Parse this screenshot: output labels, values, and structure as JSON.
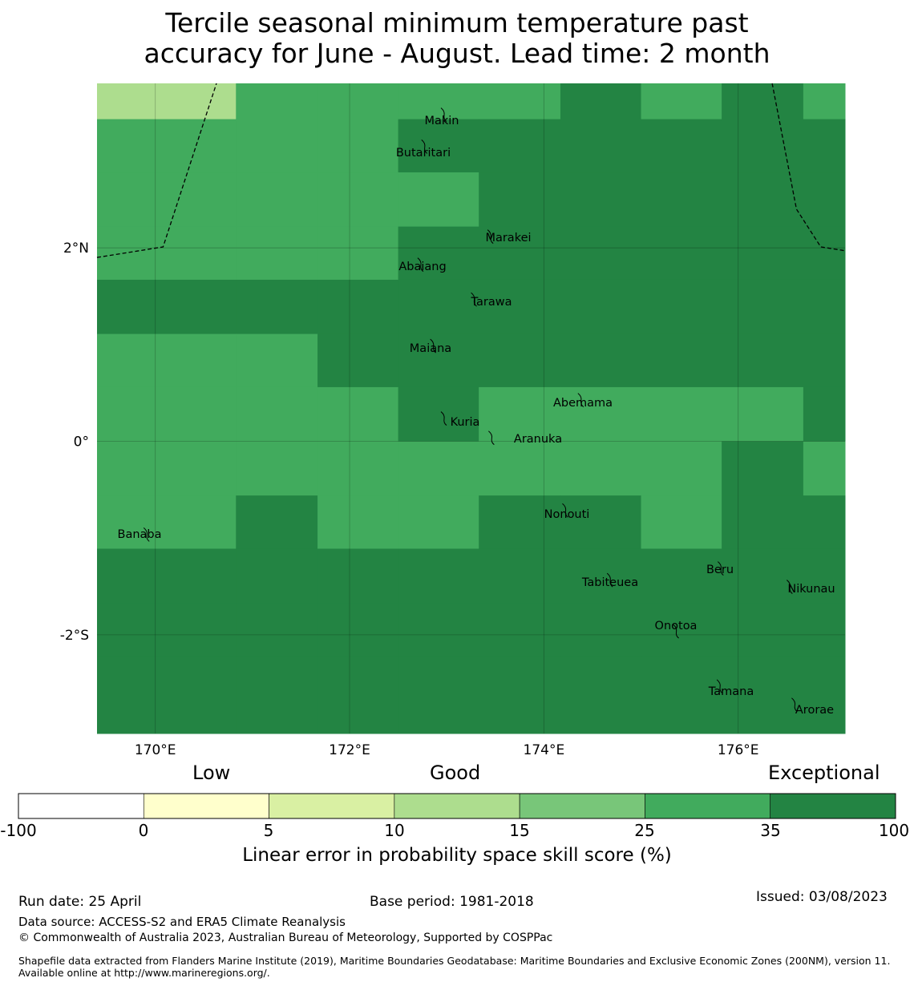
{
  "title_line1": "Tercile seasonal minimum temperature past",
  "title_line2": "accuracy for June - August. Lead time: 2 month",
  "map": {
    "lon_range": [
      169.4,
      177.1
    ],
    "lat_range": [
      -3.02,
      3.7
    ],
    "cell_lon_edges": [
      169.4,
      170.83,
      171.67,
      172.5,
      173.33,
      174.17,
      175.0,
      175.83,
      176.67,
      177.1
    ],
    "cell_lat_edges": [
      3.7,
      3.33,
      2.78,
      2.22,
      1.67,
      1.11,
      0.56,
      0.0,
      -0.56,
      -1.11,
      -1.67,
      -2.22,
      -3.02
    ],
    "cells": [
      [
        10,
        25,
        25,
        25,
        25,
        35,
        25,
        35,
        25
      ],
      [
        25,
        25,
        25,
        35,
        35,
        35,
        35,
        35,
        35
      ],
      [
        25,
        25,
        25,
        25,
        35,
        35,
        35,
        35,
        35
      ],
      [
        25,
        25,
        25,
        35,
        35,
        35,
        35,
        35,
        35
      ],
      [
        35,
        35,
        35,
        35,
        100,
        35,
        35,
        35,
        35
      ],
      [
        25,
        25,
        35,
        35,
        35,
        35,
        35,
        35,
        35
      ],
      [
        25,
        25,
        25,
        35,
        25,
        25,
        25,
        25,
        35
      ],
      [
        25,
        25,
        25,
        25,
        25,
        25,
        25,
        35,
        25
      ],
      [
        25,
        35,
        25,
        25,
        35,
        35,
        25,
        35,
        35
      ],
      [
        35,
        35,
        35,
        35,
        35,
        35,
        35,
        35,
        100
      ],
      [
        35,
        35,
        100,
        35,
        100,
        35,
        100,
        100,
        100
      ],
      [
        100,
        100,
        100,
        100,
        100,
        100,
        100,
        100,
        100
      ]
    ],
    "lon_ticks": [
      {
        "value": 170,
        "label": "170°E"
      },
      {
        "value": 172,
        "label": "172°E"
      },
      {
        "value": 174,
        "label": "174°E"
      },
      {
        "value": 176,
        "label": "176°E"
      }
    ],
    "lat_ticks": [
      {
        "value": 2,
        "label": "2°N"
      },
      {
        "value": 0,
        "label": "0°"
      },
      {
        "value": -2,
        "label": "-2°S"
      }
    ],
    "islands": [
      {
        "name": "Makin",
        "lon": 172.99,
        "lat": 3.38
      },
      {
        "name": "Butaritari",
        "lon": 172.79,
        "lat": 3.05
      },
      {
        "name": "Marakei",
        "lon": 173.47,
        "lat": 2.12
      },
      {
        "name": "Abaiang",
        "lon": 172.75,
        "lat": 1.83
      },
      {
        "name": "Tarawa",
        "lon": 173.3,
        "lat": 1.47
      },
      {
        "name": "Maiana",
        "lon": 172.88,
        "lat": 0.99
      },
      {
        "name": "Abemama",
        "lon": 174.4,
        "lat": 0.43
      },
      {
        "name": "Kuria",
        "lon": 172.99,
        "lat": 0.24
      },
      {
        "name": "Aranuka",
        "lon": 173.48,
        "lat": 0.04
      },
      {
        "name": "Nonouti",
        "lon": 174.24,
        "lat": -0.71
      },
      {
        "name": "Banaba",
        "lon": 169.93,
        "lat": -0.96
      },
      {
        "name": "Beru",
        "lon": 175.84,
        "lat": -1.31
      },
      {
        "name": "Tabiteuea",
        "lon": 174.7,
        "lat": -1.43
      },
      {
        "name": "Nikunau",
        "lon": 176.55,
        "lat": -1.5
      },
      {
        "name": "Onotoa",
        "lon": 175.38,
        "lat": -1.96
      },
      {
        "name": "Tamana",
        "lon": 175.83,
        "lat": -2.53
      },
      {
        "name": "Arorae",
        "lon": 176.6,
        "lat": -2.72
      }
    ],
    "eez_left": [
      [
        169.4,
        1.9
      ],
      [
        170.08,
        2.01
      ],
      [
        170.63,
        3.7
      ]
    ],
    "eez_right": [
      [
        176.35,
        3.7
      ],
      [
        176.6,
        2.4
      ],
      [
        176.85,
        2.01
      ],
      [
        177.1,
        1.97
      ]
    ]
  },
  "colorbar": {
    "headers": [
      "Low",
      "Good",
      "Exceptional"
    ],
    "bins": [
      "#ffffff",
      "#ffffcc",
      "#d9f0a3",
      "#addd8e",
      "#78c679",
      "#41ab5d",
      "#238443"
    ],
    "ticks": [
      "-100",
      "0",
      "5",
      "10",
      "15",
      "25",
      "35",
      "100"
    ],
    "label": "Linear error in probability space skill score (%)"
  },
  "footer": {
    "run_date": "Run date: 25 April",
    "base_period": "Base period: 1981-2018",
    "issued": "Issued: 03/08/2023",
    "data_source": "Data source: ACCESS-S2 and ERA5 Climate Reanalysis",
    "copyright": "© Commonwealth of Australia 2023, Australian Bureau of Meteorology, Supported by COSPPac",
    "shapefile": "Shapefile data extracted from Flanders Marine Institute (2019), Maritime Boundaries Geodatabase: Maritime Boundaries and Exclusive Economic Zones (200NM), version 11. Available online at http://www.marineregions.org/."
  }
}
